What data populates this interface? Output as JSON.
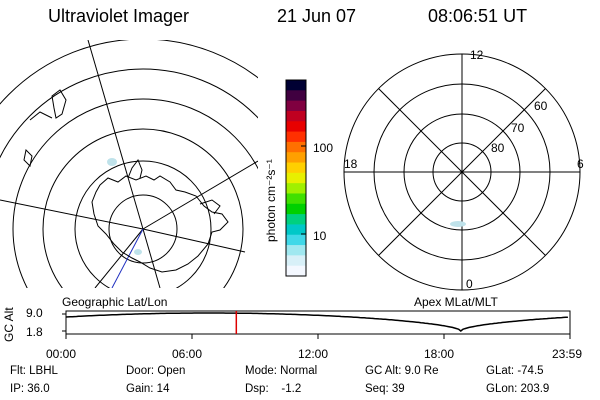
{
  "header": {
    "instrument": "Ultraviolet Imager",
    "date": "21 Jun 07",
    "time": "08:06:51 UT"
  },
  "left_panel": {
    "caption": "Geographic Lat/Lon"
  },
  "right_panel": {
    "caption": "Apex MLat/MLT",
    "mlt_labels": [
      "12",
      "6",
      "0",
      "18"
    ],
    "lat_labels": [
      "60",
      "70",
      "80"
    ]
  },
  "colorbar": {
    "unit_label": "photon cm⁻²s⁻¹",
    "ticks": [
      "100",
      "10"
    ],
    "colors": [
      "#000033",
      "#400040",
      "#800040",
      "#c00020",
      "#e80000",
      "#ff3000",
      "#ff7000",
      "#ffa000",
      "#ffd000",
      "#e8f000",
      "#a0f000",
      "#40e000",
      "#00d000",
      "#00d080",
      "#00c8c8",
      "#40d8e8",
      "#a0e8f0",
      "#d8f0f8",
      "#f4f8ff"
    ]
  },
  "altitude_plot": {
    "ylabel": "GC Alt",
    "yticks": [
      "9.0",
      "1.8"
    ],
    "xticks": [
      "00:00",
      "06:00",
      "12:00",
      "18:00",
      "23:59"
    ],
    "current_time_hours": 8.11,
    "marker_color": "#dd0000"
  },
  "info": {
    "flt": "Flt: LBHL",
    "ip": "IP: 36.0",
    "door": "Door: Open",
    "gain": "Gain: 14",
    "mode": "Mode: Normal",
    "dsp": "Dsp:    -1.2",
    "gcalt": "GC Alt: 9.0 Re",
    "seq": "Seq: 39",
    "glat": "GLat: -74.5",
    "glon": "GLon: 203.9"
  }
}
